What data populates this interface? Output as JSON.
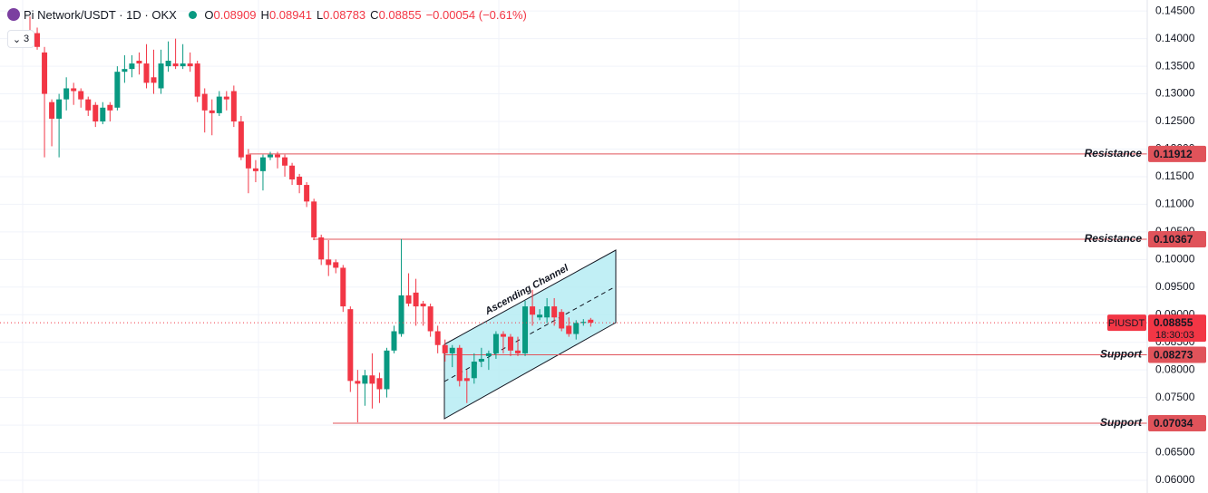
{
  "chart_data": {
    "type": "candlestick",
    "title": "Pi Network/USDT · 1D · OKX",
    "ohlc_labels": [
      "O",
      "H",
      "L",
      "C"
    ],
    "change_label": "−0.00054 (−0.61%)",
    "collapse_count": "3",
    "up_color": "#089981",
    "down_color": "#f23645",
    "open": [
      0.1415,
      0.141,
      0.1375,
      0.1285,
      0.1255,
      0.129,
      0.131,
      0.1305,
      0.129,
      0.128,
      0.125,
      0.128,
      0.1275,
      0.134,
      0.1345,
      0.136,
      0.1355,
      0.133,
      0.131,
      0.135,
      0.1355,
      0.135,
      0.1355,
      0.1355,
      0.13,
      0.127,
      0.1265,
      0.1295,
      0.1305,
      0.125,
      0.119,
      0.1165,
      0.116,
      0.1185,
      0.119,
      0.1185,
      0.117,
      0.115,
      0.1135,
      0.1105,
      0.104,
      0.1,
      0.0995,
      0.0985,
      0.091,
      0.078,
      0.0775,
      0.079,
      0.0785,
      0.0765,
      0.0835,
      0.0865,
      0.0935,
      0.094,
      0.092,
      0.0915,
      0.087,
      0.0845,
      0.083,
      0.084,
      0.0785,
      0.0785,
      0.0815,
      0.0825,
      0.083,
      0.0865,
      0.086,
      0.0835,
      0.083,
      0.0915,
      0.0895,
      0.0895,
      0.0915,
      0.0905,
      0.088,
      0.0865,
      0.0885,
      0.08909
    ],
    "high": [
      0.144,
      0.142,
      0.1385,
      0.129,
      0.13,
      0.133,
      0.132,
      0.131,
      0.1295,
      0.1285,
      0.1285,
      0.1285,
      0.135,
      0.137,
      0.137,
      0.1375,
      0.139,
      0.138,
      0.138,
      0.1395,
      0.14,
      0.139,
      0.1375,
      0.136,
      0.131,
      0.129,
      0.1305,
      0.1305,
      0.1315,
      0.126,
      0.12,
      0.118,
      0.119,
      0.1195,
      0.1195,
      0.119,
      0.1175,
      0.1155,
      0.114,
      0.111,
      0.1045,
      0.1035,
      0.1,
      0.099,
      0.0915,
      0.08,
      0.08,
      0.083,
      0.0795,
      0.084,
      0.088,
      0.1037,
      0.0975,
      0.0965,
      0.0925,
      0.092,
      0.088,
      0.0855,
      0.0845,
      0.0845,
      0.08,
      0.083,
      0.084,
      0.0835,
      0.087,
      0.087,
      0.0865,
      0.086,
      0.0925,
      0.0945,
      0.091,
      0.093,
      0.093,
      0.091,
      0.0895,
      0.089,
      0.0892,
      0.08941
    ],
    "low": [
      0.14,
      0.138,
      0.1185,
      0.1205,
      0.1185,
      0.127,
      0.128,
      0.1275,
      0.126,
      0.124,
      0.1245,
      0.125,
      0.127,
      0.132,
      0.133,
      0.1335,
      0.131,
      0.13,
      0.13,
      0.134,
      0.1345,
      0.1345,
      0.134,
      0.1285,
      0.123,
      0.1225,
      0.126,
      0.127,
      0.124,
      0.118,
      0.112,
      0.114,
      0.1125,
      0.118,
      0.1165,
      0.115,
      0.1135,
      0.112,
      0.1095,
      0.1035,
      0.099,
      0.097,
      0.0975,
      0.0905,
      0.076,
      0.0705,
      0.0735,
      0.073,
      0.074,
      0.075,
      0.083,
      0.086,
      0.0915,
      0.088,
      0.088,
      0.086,
      0.083,
      0.0815,
      0.0805,
      0.077,
      0.074,
      0.0775,
      0.0805,
      0.08,
      0.082,
      0.083,
      0.0825,
      0.0825,
      0.0825,
      0.088,
      0.089,
      0.0885,
      0.088,
      0.087,
      0.086,
      0.0855,
      0.088,
      0.08783
    ],
    "close": [
      0.141,
      0.1385,
      0.13,
      0.1255,
      0.129,
      0.131,
      0.1305,
      0.129,
      0.127,
      0.125,
      0.1275,
      0.127,
      0.134,
      0.1345,
      0.1355,
      0.1355,
      0.132,
      0.132,
      0.1355,
      0.136,
      0.135,
      0.1355,
      0.135,
      0.1295,
      0.127,
      0.1265,
      0.1295,
      0.129,
      0.125,
      0.1185,
      0.1165,
      0.116,
      0.1185,
      0.119,
      0.1185,
      0.117,
      0.1145,
      0.1135,
      0.1105,
      0.104,
      0.1,
      0.099,
      0.0985,
      0.0915,
      0.078,
      0.0775,
      0.079,
      0.0775,
      0.0765,
      0.0835,
      0.087,
      0.0935,
      0.092,
      0.0915,
      0.0915,
      0.087,
      0.0845,
      0.083,
      0.084,
      0.078,
      0.078,
      0.0815,
      0.082,
      0.083,
      0.0865,
      0.086,
      0.0835,
      0.083,
      0.0915,
      0.09,
      0.09,
      0.0915,
      0.0895,
      0.0875,
      0.0865,
      0.0885,
      0.0887,
      0.08855
    ],
    "ylim": [
      0.0577,
      0.147
    ],
    "yticks": [
      {
        "value": 0.145,
        "label": "0.14500"
      },
      {
        "value": 0.14,
        "label": "0.14000"
      },
      {
        "value": 0.135,
        "label": "0.13500"
      },
      {
        "value": 0.13,
        "label": "0.13000"
      },
      {
        "value": 0.125,
        "label": "0.12500"
      },
      {
        "value": 0.12,
        "label": "0.12000"
      },
      {
        "value": 0.115,
        "label": "0.11500"
      },
      {
        "value": 0.11,
        "label": "0.11000"
      },
      {
        "value": 0.105,
        "label": "0.10500"
      },
      {
        "value": 0.1,
        "label": "0.10000"
      },
      {
        "value": 0.095,
        "label": "0.09500"
      },
      {
        "value": 0.09,
        "label": "0.09000"
      },
      {
        "value": 0.085,
        "label": "0.08500"
      },
      {
        "value": 0.08,
        "label": "0.08000"
      },
      {
        "value": 0.075,
        "label": "0.07500"
      },
      {
        "value": 0.07,
        "label": "0.07000"
      },
      {
        "value": 0.065,
        "label": "0.06500"
      },
      {
        "value": 0.06,
        "label": "0.06000"
      }
    ],
    "grid": true,
    "levels": [
      {
        "label": "Resistance",
        "value": 0.11912
      },
      {
        "label": "Resistance",
        "value": 0.10367
      },
      {
        "label": "Support",
        "value": 0.08273
      },
      {
        "label": "Support",
        "value": 0.07034
      }
    ],
    "level_color": "#e0535a",
    "channel_label": "Ascending Channel",
    "symbol_tag": "PIUSDT",
    "countdown": "18:30:03"
  }
}
